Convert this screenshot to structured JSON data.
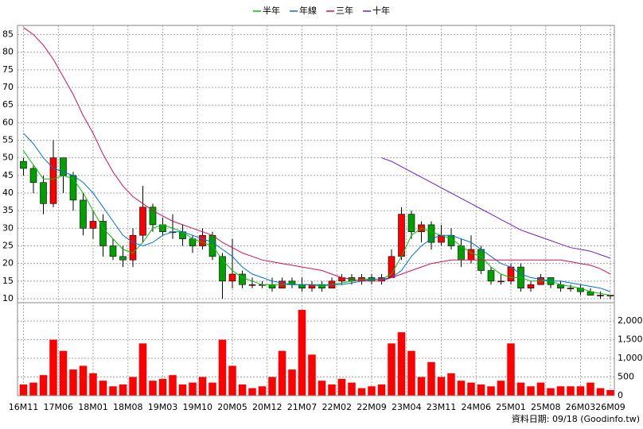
{
  "chart_data": [
    {
      "type": "candlestick",
      "categories": [
        null,
        null,
        null,
        null,
        null,
        null,
        null,
        null,
        null,
        null,
        null,
        null,
        null,
        null,
        null,
        null,
        null,
        null,
        null,
        null,
        null,
        null,
        null,
        null,
        null,
        null,
        null,
        null,
        null,
        null,
        null,
        null,
        null,
        null,
        null,
        null,
        null,
        null,
        null,
        null,
        null,
        null,
        null,
        null,
        null,
        null,
        null,
        null,
        null,
        null,
        null,
        null,
        null,
        null,
        null,
        null,
        null,
        null,
        null,
        null
      ],
      "open": [
        49,
        47,
        43,
        37,
        50,
        45,
        38,
        30,
        32,
        25,
        22,
        21,
        28,
        36,
        31,
        29,
        29,
        27,
        25,
        28,
        22,
        15,
        17,
        14,
        14,
        14,
        13,
        15,
        14,
        13,
        14,
        13,
        15,
        16,
        15,
        16,
        15,
        16,
        22,
        34,
        29,
        31,
        26,
        28,
        25,
        21,
        24,
        18,
        15,
        15,
        19,
        13,
        14,
        16,
        14,
        13,
        13,
        12,
        11,
        11
      ],
      "high": [
        50,
        48,
        45,
        55,
        50,
        46,
        40,
        35,
        34,
        27,
        25,
        30,
        42,
        37,
        33,
        34,
        31,
        28,
        30,
        29,
        23,
        27,
        18,
        16,
        15,
        16,
        16,
        16,
        16,
        15,
        15,
        16,
        17,
        17,
        17,
        17,
        17,
        24,
        36,
        35,
        32,
        32,
        31,
        30,
        27,
        28,
        25,
        19,
        17,
        20,
        20,
        15,
        17,
        16,
        15,
        14,
        14,
        13,
        12,
        11
      ],
      "low": [
        45,
        40,
        34,
        36,
        40,
        35,
        28,
        27,
        22,
        21,
        19,
        19,
        26,
        29,
        28,
        27,
        25,
        23,
        24,
        21,
        10,
        13,
        13,
        13,
        13,
        12,
        13,
        13,
        12,
        12,
        12,
        13,
        14,
        14,
        14,
        14,
        14,
        16,
        21,
        27,
        26,
        24,
        25,
        24,
        19,
        20,
        17,
        14,
        14,
        14,
        12,
        12,
        14,
        13,
        12,
        12,
        11,
        11,
        10,
        10
      ],
      "close": [
        47,
        43,
        37,
        50,
        45,
        38,
        30,
        32,
        25,
        22,
        21,
        28,
        36,
        31,
        29,
        29,
        27,
        25,
        28,
        22,
        15,
        17,
        14,
        14,
        14,
        13,
        15,
        14,
        13,
        14,
        13,
        15,
        16,
        15,
        16,
        15,
        16,
        22,
        34,
        29,
        31,
        26,
        28,
        25,
        21,
        24,
        18,
        15,
        15,
        19,
        13,
        14,
        16,
        14,
        13,
        13,
        12,
        11,
        11,
        11
      ],
      "up_color": "#ff0000",
      "down_color": "#00a000",
      "series": [
        {
          "name": "半年",
          "color": "#00c000",
          "values": [
            52,
            48,
            44,
            44,
            45,
            44,
            40,
            35,
            30,
            27,
            24,
            23,
            26,
            30,
            31,
            30,
            29,
            27,
            26,
            25,
            21,
            18,
            16,
            15,
            14,
            14,
            14,
            14,
            14,
            14,
            13.5,
            14,
            14.5,
            15,
            15.5,
            15.5,
            15.5,
            17,
            22,
            28,
            30,
            29,
            28,
            27,
            25,
            23,
            22,
            19,
            17,
            16,
            16,
            15,
            15,
            15,
            14,
            13.5,
            13,
            12,
            11.5,
            11
          ]
        },
        {
          "name": "年線",
          "color": "#0070e0",
          "values": [
            57,
            54,
            50,
            47,
            46,
            45,
            43,
            40,
            36,
            32,
            28,
            26,
            25,
            26,
            28,
            29,
            29,
            28,
            27,
            26,
            24,
            22,
            19,
            17,
            16,
            15,
            14.5,
            14,
            14,
            14,
            14,
            14,
            14,
            14.5,
            15,
            15.5,
            15.5,
            16,
            18,
            22,
            25,
            27,
            28,
            28,
            27,
            26,
            24,
            22,
            20,
            19,
            17,
            16,
            15.5,
            15,
            15,
            14.5,
            14,
            13.5,
            13,
            12
          ]
        },
        {
          "name": "三年",
          "color": "#d0105a",
          "values": [
            87,
            85,
            82,
            78,
            73,
            68,
            62,
            57,
            51,
            46,
            42,
            39,
            37,
            35,
            33.5,
            32,
            31,
            30,
            29,
            28,
            26,
            24.5,
            23,
            22,
            21,
            20.5,
            20,
            19.5,
            19,
            18.5,
            18,
            17,
            16,
            15.5,
            15,
            15,
            15,
            16,
            17,
            18,
            19,
            20,
            20.5,
            21,
            21,
            21,
            21,
            21,
            21,
            21,
            21,
            21,
            21,
            21,
            21,
            20.5,
            20,
            19.5,
            18.5,
            17
          ]
        },
        {
          "name": "十年",
          "color": "#7020c0",
          "values": [
            null,
            null,
            null,
            null,
            null,
            null,
            null,
            null,
            null,
            null,
            null,
            null,
            null,
            null,
            null,
            null,
            null,
            null,
            null,
            null,
            null,
            null,
            null,
            null,
            null,
            null,
            null,
            null,
            null,
            null,
            null,
            null,
            null,
            null,
            null,
            null,
            50,
            49,
            47.5,
            46,
            44.5,
            43,
            41.5,
            40,
            38.5,
            37,
            35.5,
            34,
            32.5,
            31,
            29.5,
            28.5,
            27.5,
            26.5,
            25.5,
            24.5,
            24,
            23.5,
            22.5,
            21.5
          ]
        }
      ],
      "xlim": [
        -0.6,
        59.4
      ],
      "xticks": [
        {
          "value": 0,
          "label": "16M11"
        },
        {
          "value": 3.5,
          "label": "17M06"
        },
        {
          "value": 7,
          "label": "18M01"
        },
        {
          "value": 10.5,
          "label": "18M08"
        },
        {
          "value": 14,
          "label": "19M03"
        },
        {
          "value": 17.5,
          "label": "19M10"
        },
        {
          "value": 21,
          "label": "20M05"
        },
        {
          "value": 24.5,
          "label": "20M12"
        },
        {
          "value": 28,
          "label": "21M07"
        },
        {
          "value": 31.5,
          "label": "22M02"
        },
        {
          "value": 35,
          "label": "22M09"
        },
        {
          "value": 38.5,
          "label": "23M04"
        },
        {
          "value": 42,
          "label": "23M11"
        },
        {
          "value": 45.5,
          "label": "24M06"
        },
        {
          "value": 49,
          "label": "25M01"
        },
        {
          "value": 52.5,
          "label": "25M08"
        },
        {
          "value": 56,
          "label": "26M03"
        },
        {
          "value": 59,
          "label": "26M09"
        }
      ],
      "ylim": [
        9.1,
        87.6
      ],
      "yticks": [
        10,
        15,
        20,
        25,
        30,
        35,
        40,
        45,
        50,
        55,
        60,
        65,
        70,
        75,
        80,
        85
      ],
      "grid": true
    },
    {
      "type": "bar",
      "values": [
        300,
        350,
        550,
        1500,
        1200,
        700,
        800,
        600,
        400,
        250,
        300,
        500,
        1400,
        400,
        450,
        550,
        300,
        350,
        500,
        350,
        1500,
        800,
        300,
        200,
        250,
        500,
        1200,
        700,
        2300,
        1100,
        400,
        300,
        450,
        350,
        200,
        250,
        300,
        1400,
        1700,
        1200,
        500,
        900,
        500,
        600,
        400,
        350,
        300,
        250,
        400,
        1400,
        350,
        250,
        350,
        200,
        250,
        250,
        250,
        350,
        200,
        150
      ],
      "color": "#ff0000",
      "ylim": [
        0,
        2450
      ],
      "yticks": [
        0,
        500,
        {
          "value": 1000,
          "label": "1,000"
        },
        {
          "value": 1500,
          "label": "1,500"
        },
        {
          "value": 2000,
          "label": "2,000"
        }
      ],
      "grid": true
    }
  ],
  "footer": "資料日期: 09/18 (Goodinfo.tw)"
}
